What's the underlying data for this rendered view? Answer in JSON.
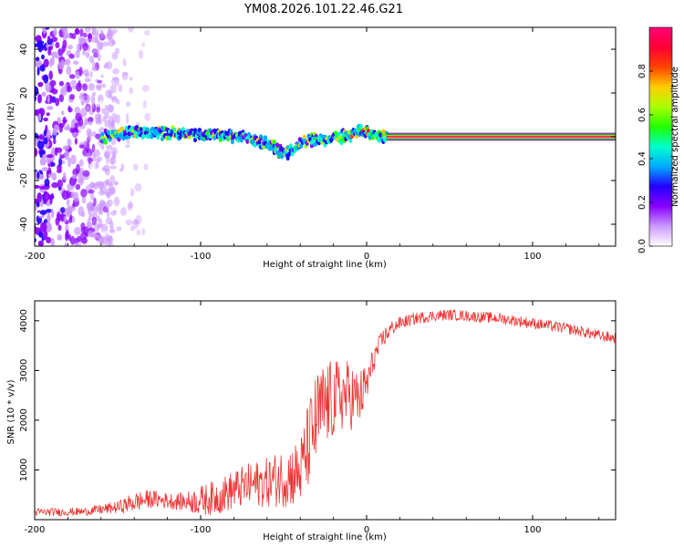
{
  "title": "YM08.2026.101.22.46.G21",
  "chart_data": [
    {
      "type": "heatmap",
      "name": "spectrogram",
      "xlabel": "Height of straight line (km)",
      "ylabel": "Frequency (Hz)",
      "xlim": [
        -200,
        150
      ],
      "ylim": [
        -50,
        50
      ],
      "xticks": [
        -200,
        -100,
        0,
        100
      ],
      "yticks": [
        -40,
        -20,
        0,
        20,
        40
      ],
      "colorbar": {
        "label": "Normalized spectral amplitude",
        "range": [
          0,
          1
        ],
        "ticks": [
          "0.0",
          "0.2",
          "0.4",
          "0.6",
          "0.8"
        ],
        "colors": [
          "#ffffff",
          "#cc99ff",
          "#8800ff",
          "#2200ff",
          "#00aaff",
          "#00ffcc",
          "#22ff00",
          "#aaff00",
          "#ffcc00",
          "#ff4400",
          "#ff0033",
          "#ff0077"
        ]
      },
      "ridge": {
        "x": [
          -160,
          -150,
          -140,
          -130,
          -120,
          -110,
          -100,
          -90,
          -80,
          -70,
          -60,
          -55,
          -50,
          -45,
          -40,
          -35,
          -30,
          -25,
          -20,
          -15,
          -10,
          -5,
          0,
          5,
          10,
          12
        ],
        "y": [
          0,
          1,
          2,
          1.5,
          2,
          1.5,
          1,
          1,
          0,
          -1,
          -3,
          -5,
          -8,
          -6,
          -3,
          -2,
          -1,
          -1,
          -0.5,
          0,
          1,
          3,
          2,
          0.5,
          0.2,
          0
        ],
        "noise_region_x": [
          -200,
          -130
        ],
        "carrier_line_x": [
          12,
          150
        ],
        "carrier_line_y": 0
      }
    },
    {
      "type": "line",
      "name": "snr",
      "xlabel": "Height of straight line (km)",
      "ylabel": "SNR (10 * v/v)",
      "xlim": [
        -200,
        150
      ],
      "ylim": [
        0,
        4400
      ],
      "xticks": [
        -200,
        -100,
        0,
        100
      ],
      "yticks": [
        1000,
        2000,
        3000,
        4000
      ],
      "color": "#ee3333",
      "trend": {
        "x": [
          -200,
          -170,
          -150,
          -140,
          -130,
          -120,
          -110,
          -100,
          -90,
          -80,
          -70,
          -60,
          -50,
          -40,
          -35,
          -30,
          -25,
          -20,
          -15,
          -10,
          -5,
          0,
          5,
          10,
          15,
          20,
          25,
          30,
          40,
          50,
          60,
          70,
          80,
          90,
          100,
          110,
          120,
          130,
          140,
          150
        ],
        "y": [
          150,
          160,
          250,
          350,
          420,
          380,
          360,
          380,
          450,
          600,
          700,
          750,
          850,
          950,
          1500,
          2000,
          2300,
          2400,
          2500,
          2500,
          2400,
          2700,
          3300,
          3650,
          3850,
          3950,
          4000,
          4050,
          4100,
          4120,
          4100,
          4070,
          4050,
          4000,
          3950,
          3900,
          3850,
          3780,
          3700,
          3650
        ],
        "amplitude": [
          80,
          80,
          120,
          200,
          180,
          160,
          180,
          300,
          350,
          400,
          450,
          500,
          600,
          700,
          900,
          1000,
          900,
          800,
          750,
          700,
          600,
          450,
          250,
          200,
          150,
          130,
          120,
          120,
          110,
          110,
          110,
          110,
          110,
          110,
          110,
          110,
          110,
          110,
          110,
          110
        ]
      }
    }
  ]
}
